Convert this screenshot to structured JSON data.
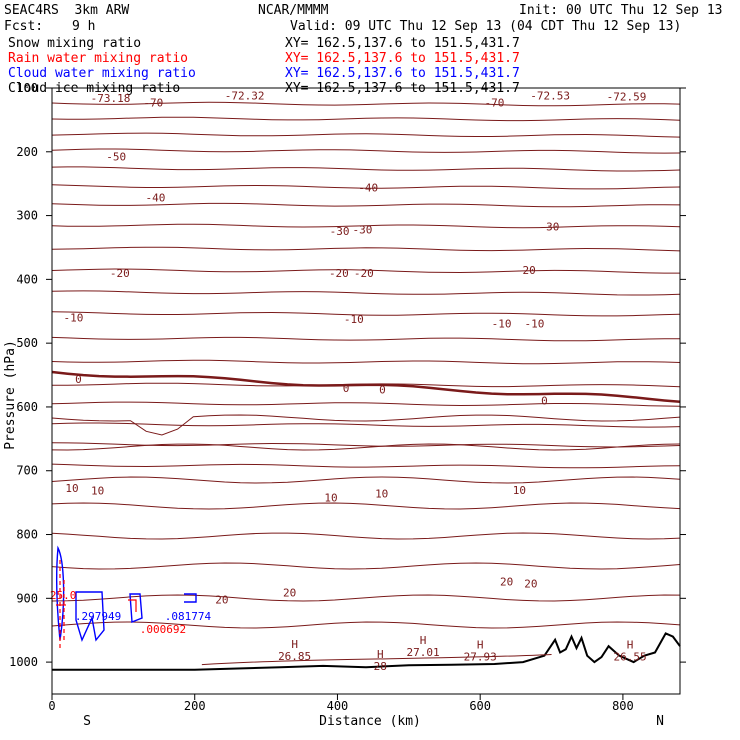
{
  "header": {
    "model": "SEAC4RS  3km ARW",
    "center": "NCAR/MMMM",
    "init": "Init: 00 UTC Thu 12 Sep 13",
    "fcst_label": "Fcst:",
    "fcst_value": "9 h",
    "valid": "Valid: 09 UTC Thu 12 Sep 13 (04 CDT Thu 12 Sep 13)"
  },
  "fields": [
    {
      "name": "Snow mixing ratio",
      "xy": "XY= 162.5,137.6 to 151.5,431.7",
      "color": "#000000"
    },
    {
      "name": "Rain water mixing ratio",
      "xy": "XY= 162.5,137.6 to 151.5,431.7",
      "color": "#ff0000"
    },
    {
      "name": "Cloud water mixing ratio",
      "xy": "XY= 162.5,137.6 to 151.5,431.7",
      "color": "#0000ff"
    },
    {
      "name": "Cloud ice mixing ratio",
      "xy": "XY= 162.5,137.6 to 151.5,431.7",
      "color": "#000000"
    }
  ],
  "colors": {
    "contour": "#7a1a1a",
    "terrain": "#000000",
    "rain": "#ff0000",
    "cloud": "#0000ff"
  },
  "chart_data": {
    "type": "line",
    "title": "",
    "xlabel": "Distance (km)",
    "ylabel": "Pressure (hPa)",
    "xlim": [
      0,
      880
    ],
    "ylim": [
      1050,
      100
    ],
    "x_ticks": [
      0,
      200,
      400,
      600,
      800
    ],
    "y_ticks": [
      100,
      200,
      300,
      400,
      500,
      600,
      700,
      800,
      900,
      1000
    ],
    "x_end_labels": {
      "left": "S",
      "right": "N"
    },
    "contour_labels": [
      {
        "text": "-73.18",
        "x": 82,
        "p": 116
      },
      {
        "text": "-72.32",
        "x": 270,
        "p": 112
      },
      {
        "text": "-72.53",
        "x": 698,
        "p": 112
      },
      {
        "text": "-72.59",
        "x": 805,
        "p": 113
      },
      {
        "text": "-70",
        "x": 142,
        "p": 123
      },
      {
        "text": "-70",
        "x": 620,
        "p": 123
      },
      {
        "text": "-50",
        "x": 90,
        "p": 207
      },
      {
        "text": "-40",
        "x": 145,
        "p": 272
      },
      {
        "text": "-40",
        "x": 443,
        "p": 256
      },
      {
        "text": "-30",
        "x": 403,
        "p": 324
      },
      {
        "text": "-30",
        "x": 435,
        "p": 322
      },
      {
        "text": "-30",
        "x": 697,
        "p": 317
      },
      {
        "text": "-20",
        "x": 95,
        "p": 390
      },
      {
        "text": "-20",
        "x": 402,
        "p": 390
      },
      {
        "text": "-20",
        "x": 437,
        "p": 390
      },
      {
        "text": "-20",
        "x": 664,
        "p": 385
      },
      {
        "text": "-10",
        "x": 30,
        "p": 460
      },
      {
        "text": "-10",
        "x": 423,
        "p": 462
      },
      {
        "text": "-10",
        "x": 630,
        "p": 469
      },
      {
        "text": "-10",
        "x": 676,
        "p": 469
      },
      {
        "text": "0",
        "x": 37,
        "p": 556
      },
      {
        "text": "0",
        "x": 412,
        "p": 570
      },
      {
        "text": "0",
        "x": 463,
        "p": 573
      },
      {
        "text": "0",
        "x": 690,
        "p": 590
      },
      {
        "text": "10",
        "x": 28,
        "p": 727
      },
      {
        "text": "10",
        "x": 64,
        "p": 731
      },
      {
        "text": "10",
        "x": 391,
        "p": 742
      },
      {
        "text": "10",
        "x": 462,
        "p": 736
      },
      {
        "text": "10",
        "x": 655,
        "p": 730
      },
      {
        "text": "20",
        "x": 238,
        "p": 902
      },
      {
        "text": "20",
        "x": 333,
        "p": 891
      },
      {
        "text": "20",
        "x": 637,
        "p": 874
      },
      {
        "text": "20",
        "x": 671,
        "p": 877
      }
    ],
    "high_labels": [
      {
        "x": 340,
        "p": 984,
        "value": "26.85"
      },
      {
        "x": 460,
        "p": 1000,
        "value": "28"
      },
      {
        "x": 520,
        "p": 978,
        "value": "27.01"
      },
      {
        "x": 600,
        "p": 985,
        "value": "27.93"
      },
      {
        "x": 810,
        "p": 985,
        "value": "26.55"
      }
    ],
    "mixing_labels": [
      {
        "text": ".297949",
        "x": 32,
        "p": 928,
        "color": "#0000ff"
      },
      {
        "text": ".081774",
        "x": 158,
        "p": 928,
        "color": "#0000ff"
      },
      {
        "text": ".000692",
        "x": 123,
        "p": 948,
        "color": "#ff0000"
      },
      {
        "text": "25.0",
        "x": -3,
        "p": 895,
        "color": "#ff0000"
      }
    ],
    "terrain": [
      [
        0,
        1012
      ],
      [
        200,
        1012
      ],
      [
        260,
        1010
      ],
      [
        320,
        1008
      ],
      [
        380,
        1006
      ],
      [
        440,
        1008
      ],
      [
        500,
        1005
      ],
      [
        560,
        1004
      ],
      [
        620,
        1003
      ],
      [
        660,
        1000
      ],
      [
        690,
        990
      ],
      [
        705,
        965
      ],
      [
        712,
        985
      ],
      [
        720,
        980
      ],
      [
        728,
        960
      ],
      [
        735,
        978
      ],
      [
        742,
        962
      ],
      [
        750,
        990
      ],
      [
        760,
        1000
      ],
      [
        770,
        992
      ],
      [
        780,
        975
      ],
      [
        795,
        990
      ],
      [
        815,
        1000
      ],
      [
        830,
        990
      ],
      [
        845,
        985
      ],
      [
        860,
        955
      ],
      [
        870,
        960
      ],
      [
        880,
        975
      ]
    ]
  }
}
